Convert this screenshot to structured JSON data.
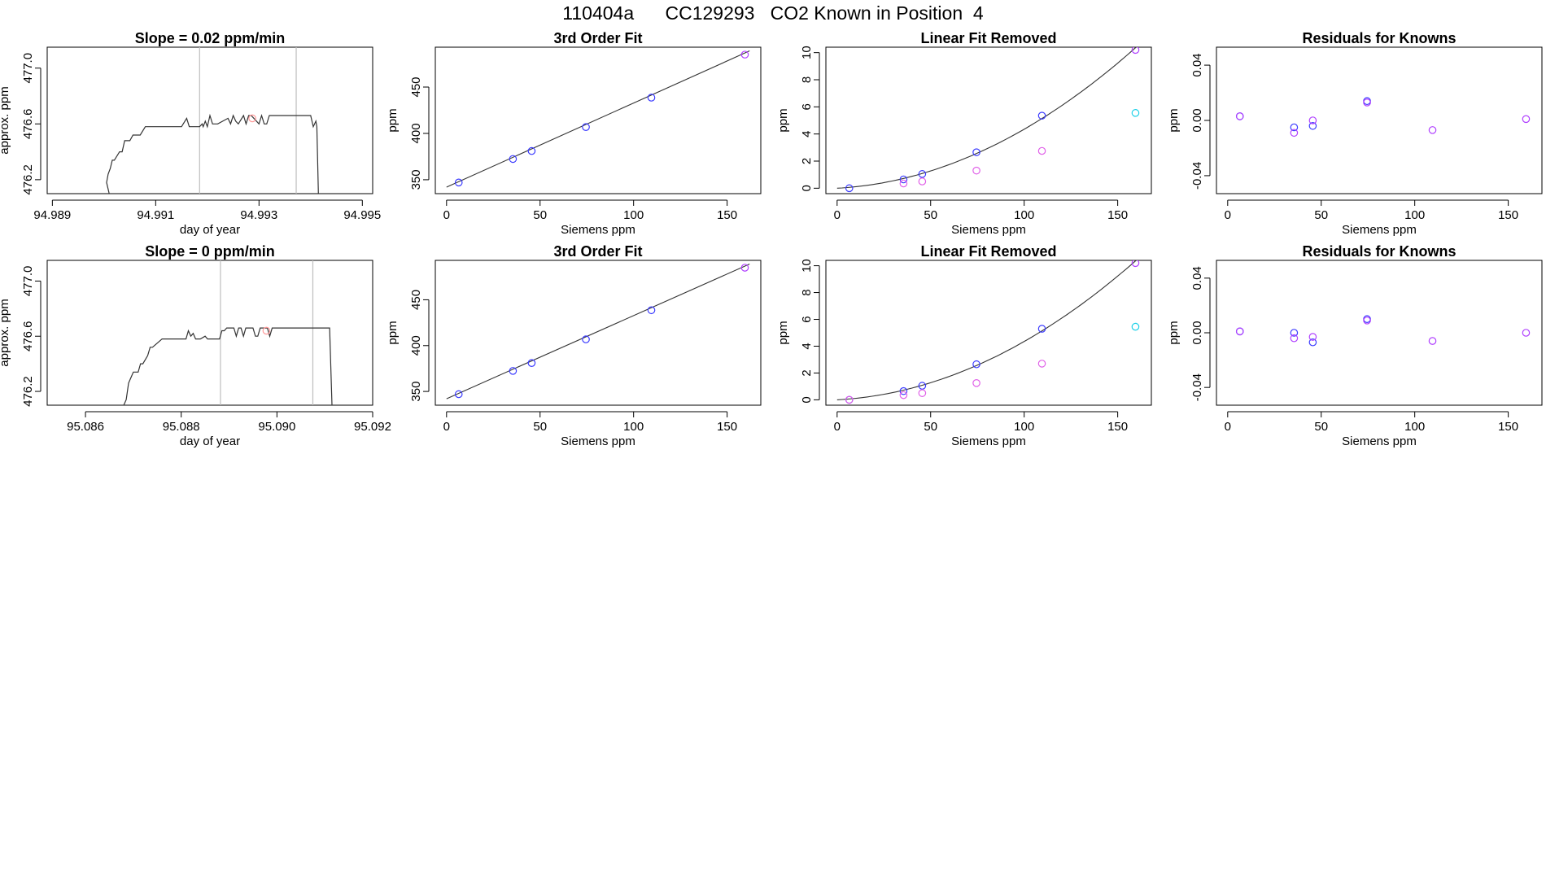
{
  "page": {
    "title": "110404a      CC129293   CO2 Known in Position  4"
  },
  "colors": {
    "axis": "#000000",
    "line": "#333333",
    "vline": "#bfbfbf",
    "blue": "#3b3bff",
    "violet": "#b040ff",
    "magenta": "#e060e8",
    "cyan": "#1ed0e8",
    "pink": "#ff9a9a"
  },
  "chart_data": [
    {
      "id": "r1c1",
      "type": "line",
      "title": "Slope =  0.02  ppm/min",
      "xlabel": "day of year",
      "ylabel": "approx. ppm",
      "xlim": [
        94.9889,
        94.9952
      ],
      "ylim": [
        476.1,
        477.15
      ],
      "xticks": [
        "94.989",
        "94.991",
        "94.993",
        "94.995"
      ],
      "yticks": [
        "476.2",
        "476.6",
        "477.0"
      ],
      "vlines": [
        94.99185,
        94.99372
      ],
      "series": [
        {
          "x": [
            94.99,
            94.9901,
            94.99005,
            94.99008,
            94.99012,
            94.99016,
            94.9902,
            94.9903,
            94.99035,
            94.9904,
            94.9905,
            94.99056,
            94.9907,
            94.9908,
            94.99085,
            94.9909,
            94.991,
            94.9913,
            94.9915,
            94.9916,
            94.99165,
            94.9917,
            94.99185,
            94.9919,
            94.99192,
            94.99196,
            94.992,
            94.99205,
            94.9921,
            94.99215,
            94.9922,
            94.9924,
            94.99245,
            94.9925,
            94.99255,
            94.9926,
            94.9927,
            94.99275,
            94.9928,
            94.99285,
            94.993,
            94.99305,
            94.9931,
            94.99315,
            94.9932,
            94.9934,
            94.9936,
            94.9938,
            94.994,
            94.99405,
            94.9941,
            94.99412,
            94.99415
          ],
          "y": [
            476.1,
            476.1,
            476.18,
            476.24,
            476.28,
            476.34,
            476.34,
            476.4,
            476.4,
            476.48,
            476.48,
            476.52,
            476.52,
            476.58,
            476.58,
            476.58,
            476.58,
            476.58,
            476.58,
            476.64,
            476.58,
            476.58,
            476.58,
            476.6,
            476.58,
            476.62,
            476.58,
            476.66,
            476.6,
            476.6,
            476.6,
            476.64,
            476.6,
            476.66,
            476.62,
            476.6,
            476.66,
            476.6,
            476.66,
            476.66,
            476.6,
            476.66,
            476.6,
            476.6,
            476.66,
            476.66,
            476.66,
            476.66,
            476.66,
            476.58,
            476.62,
            476.58,
            476.1
          ]
        }
      ],
      "points": [
        {
          "x": 94.99287,
          "y": 476.64,
          "color": "pink"
        }
      ]
    },
    {
      "id": "r1c2",
      "type": "scatter",
      "title": "3rd Order Fit",
      "xlabel": "Siemens ppm",
      "ylabel": "ppm",
      "xlim": [
        -6,
        168
      ],
      "ylim": [
        335,
        493
      ],
      "xticks": [
        "0",
        "50",
        "100",
        "150"
      ],
      "yticks": [
        "350",
        "400",
        "450"
      ],
      "curve": {
        "type": "line",
        "x0": 0,
        "y0": 342,
        "x1": 162,
        "y1": 489
      },
      "points": [
        {
          "x": 6.5,
          "y": 347,
          "color": "blue"
        },
        {
          "x": 35.5,
          "y": 372.4,
          "color": "blue"
        },
        {
          "x": 45.5,
          "y": 381,
          "color": "blue"
        },
        {
          "x": 74.5,
          "y": 406.8,
          "color": "blue"
        },
        {
          "x": 109.5,
          "y": 438.6,
          "color": "blue"
        },
        {
          "x": 159.5,
          "y": 485,
          "color": "violet"
        }
      ]
    },
    {
      "id": "r1c3",
      "type": "scatter",
      "title": "Linear Fit Removed",
      "xlabel": "Siemens ppm",
      "ylabel": "ppm",
      "xlim": [
        -6,
        168
      ],
      "ylim": [
        -0.4,
        10.4
      ],
      "xticks": [
        "0",
        "50",
        "100",
        "150"
      ],
      "yticks": [
        "0",
        "2",
        "4",
        "6",
        "8",
        "10"
      ],
      "curve": {
        "type": "poly",
        "x0": 0,
        "x1": 160,
        "coef": [
          0,
          0.0075,
          0.00036
        ]
      },
      "points": [
        {
          "x": 6.5,
          "y": 0,
          "color": "blue"
        },
        {
          "x": 35.5,
          "y": 0.65,
          "color": "blue"
        },
        {
          "x": 45.5,
          "y": 1.05,
          "color": "blue"
        },
        {
          "x": 74.5,
          "y": 2.65,
          "color": "blue"
        },
        {
          "x": 109.5,
          "y": 5.35,
          "color": "blue"
        },
        {
          "x": 159.5,
          "y": 10.2,
          "color": "violet"
        },
        {
          "x": 35.5,
          "y": 0.35,
          "color": "magenta"
        },
        {
          "x": 45.5,
          "y": 0.5,
          "color": "magenta"
        },
        {
          "x": 74.5,
          "y": 1.3,
          "color": "magenta"
        },
        {
          "x": 109.5,
          "y": 2.75,
          "color": "magenta"
        },
        {
          "x": 159.5,
          "y": 5.55,
          "color": "cyan"
        }
      ]
    },
    {
      "id": "r1c4",
      "type": "scatter",
      "title": "Residuals for Knowns",
      "xlabel": "Siemens ppm",
      "ylabel": "ppm",
      "xlim": [
        -6,
        168
      ],
      "ylim": [
        -0.053,
        0.053
      ],
      "xticks": [
        "0",
        "50",
        "100",
        "150"
      ],
      "yticks": [
        "-0.04",
        "0.00",
        "0.04"
      ],
      "points": [
        {
          "x": 6.5,
          "y": 0.003,
          "color": "blue"
        },
        {
          "x": 6.5,
          "y": 0.003,
          "color": "violet"
        },
        {
          "x": 35.5,
          "y": -0.005,
          "color": "blue"
        },
        {
          "x": 35.5,
          "y": -0.009,
          "color": "violet"
        },
        {
          "x": 45.5,
          "y": -0.004,
          "color": "blue"
        },
        {
          "x": 45.5,
          "y": 0.0,
          "color": "violet"
        },
        {
          "x": 74.5,
          "y": 0.014,
          "color": "blue"
        },
        {
          "x": 74.5,
          "y": 0.013,
          "color": "violet"
        },
        {
          "x": 109.5,
          "y": -0.007,
          "color": "violet"
        },
        {
          "x": 159.5,
          "y": 0.001,
          "color": "violet"
        }
      ]
    },
    {
      "id": "r2c1",
      "type": "line",
      "title": "Slope =  0  ppm/min",
      "xlabel": "day of year",
      "ylabel": "approx. ppm",
      "xlim": [
        95.0852,
        95.092
      ],
      "ylim": [
        476.1,
        477.15
      ],
      "xticks": [
        "95.086",
        "95.088",
        "95.090",
        "95.092"
      ],
      "yticks": [
        "476.2",
        "476.6",
        "477.0"
      ],
      "vlines": [
        95.08882,
        95.09075
      ],
      "series": [
        {
          "x": [
            95.0864,
            95.0868,
            95.08685,
            95.0869,
            95.08695,
            95.087,
            95.0871,
            95.08715,
            95.0872,
            95.0873,
            95.08735,
            95.0874,
            95.0876,
            95.088,
            95.0881,
            95.08815,
            95.0882,
            95.08825,
            95.0883,
            95.0884,
            95.0885,
            95.08855,
            95.0886,
            95.0888,
            95.08885,
            95.0889,
            95.08895,
            95.0891,
            95.08915,
            95.0892,
            95.08925,
            95.0893,
            95.08935,
            95.0894,
            95.0895,
            95.08955,
            95.0896,
            95.08965,
            95.0897,
            95.0898,
            95.08985,
            95.0899,
            95.0902,
            95.0905,
            95.0908,
            95.0911,
            95.09115
          ],
          "y": [
            476.1,
            476.1,
            476.14,
            476.26,
            476.3,
            476.34,
            476.34,
            476.4,
            476.4,
            476.46,
            476.52,
            476.52,
            476.58,
            476.58,
            476.58,
            476.64,
            476.6,
            476.62,
            476.58,
            476.58,
            476.6,
            476.58,
            476.58,
            476.58,
            476.64,
            476.64,
            476.66,
            476.66,
            476.6,
            476.66,
            476.66,
            476.6,
            476.66,
            476.66,
            476.66,
            476.6,
            476.6,
            476.66,
            476.66,
            476.66,
            476.6,
            476.66,
            476.66,
            476.66,
            476.66,
            476.66,
            476.1
          ]
        }
      ],
      "points": [
        {
          "x": 95.08978,
          "y": 476.64,
          "color": "pink"
        }
      ]
    },
    {
      "id": "r2c2",
      "type": "scatter",
      "title": "3rd Order Fit",
      "xlabel": "Siemens ppm",
      "ylabel": "ppm",
      "xlim": [
        -6,
        168
      ],
      "ylim": [
        335,
        493
      ],
      "xticks": [
        "0",
        "50",
        "100",
        "150"
      ],
      "yticks": [
        "350",
        "400",
        "450"
      ],
      "curve": {
        "type": "line",
        "x0": 0,
        "y0": 342,
        "x1": 162,
        "y1": 489
      },
      "points": [
        {
          "x": 6.5,
          "y": 347,
          "color": "blue"
        },
        {
          "x": 35.5,
          "y": 372.4,
          "color": "blue"
        },
        {
          "x": 45.5,
          "y": 381,
          "color": "blue"
        },
        {
          "x": 74.5,
          "y": 406.8,
          "color": "blue"
        },
        {
          "x": 109.5,
          "y": 438.6,
          "color": "blue"
        },
        {
          "x": 159.5,
          "y": 485,
          "color": "violet"
        }
      ]
    },
    {
      "id": "r2c3",
      "type": "scatter",
      "title": "Linear Fit Removed",
      "xlabel": "Siemens ppm",
      "ylabel": "ppm",
      "xlim": [
        -6,
        168
      ],
      "ylim": [
        -0.4,
        10.4
      ],
      "xticks": [
        "0",
        "50",
        "100",
        "150"
      ],
      "yticks": [
        "0",
        "2",
        "4",
        "6",
        "8",
        "10"
      ],
      "curve": {
        "type": "poly",
        "x0": 0,
        "x1": 160,
        "coef": [
          0,
          0.0075,
          0.00036
        ]
      },
      "points": [
        {
          "x": 6.5,
          "y": 0,
          "color": "blue"
        },
        {
          "x": 35.5,
          "y": 0.65,
          "color": "blue"
        },
        {
          "x": 45.5,
          "y": 1.05,
          "color": "blue"
        },
        {
          "x": 74.5,
          "y": 2.65,
          "color": "blue"
        },
        {
          "x": 109.5,
          "y": 5.3,
          "color": "blue"
        },
        {
          "x": 159.5,
          "y": 10.2,
          "color": "violet"
        },
        {
          "x": 6.5,
          "y": 0.0,
          "color": "magenta"
        },
        {
          "x": 35.5,
          "y": 0.35,
          "color": "magenta"
        },
        {
          "x": 45.5,
          "y": 0.5,
          "color": "magenta"
        },
        {
          "x": 74.5,
          "y": 1.25,
          "color": "magenta"
        },
        {
          "x": 109.5,
          "y": 2.7,
          "color": "magenta"
        },
        {
          "x": 159.5,
          "y": 5.45,
          "color": "cyan"
        }
      ]
    },
    {
      "id": "r2c4",
      "type": "scatter",
      "title": "Residuals for Knowns",
      "xlabel": "Siemens ppm",
      "ylabel": "ppm",
      "xlim": [
        -6,
        168
      ],
      "ylim": [
        -0.053,
        0.053
      ],
      "xticks": [
        "0",
        "50",
        "100",
        "150"
      ],
      "yticks": [
        "-0.04",
        "0.00",
        "0.04"
      ],
      "points": [
        {
          "x": 6.5,
          "y": 0.001,
          "color": "blue"
        },
        {
          "x": 6.5,
          "y": 0.001,
          "color": "violet"
        },
        {
          "x": 35.5,
          "y": 0.0,
          "color": "blue"
        },
        {
          "x": 35.5,
          "y": -0.004,
          "color": "violet"
        },
        {
          "x": 45.5,
          "y": -0.007,
          "color": "blue"
        },
        {
          "x": 45.5,
          "y": -0.003,
          "color": "violet"
        },
        {
          "x": 74.5,
          "y": 0.01,
          "color": "blue"
        },
        {
          "x": 74.5,
          "y": 0.009,
          "color": "violet"
        },
        {
          "x": 109.5,
          "y": -0.006,
          "color": "violet"
        },
        {
          "x": 159.5,
          "y": 0.0,
          "color": "violet"
        }
      ]
    }
  ]
}
